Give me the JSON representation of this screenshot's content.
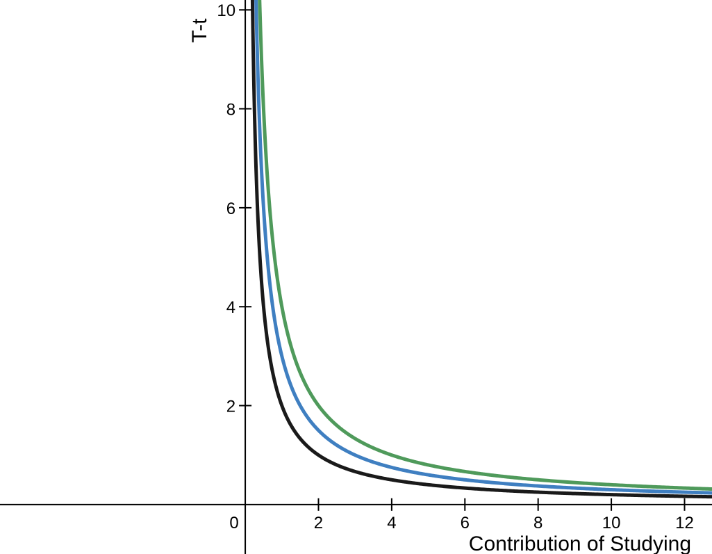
{
  "chart_data": {
    "type": "line",
    "xlabel": "Contribution of Studying",
    "ylabel": "T-t",
    "xlim": [
      -6.7,
      12.75
    ],
    "ylim": [
      -1.0,
      10.2
    ],
    "x_ticks": [
      0,
      2,
      4,
      6,
      8,
      10,
      12
    ],
    "y_ticks": [
      2,
      4,
      6,
      8,
      10
    ],
    "grid": false,
    "series": [
      {
        "color": "#1a1a1a",
        "k": 2.0,
        "x": [
          0.2,
          0.5,
          1,
          1.5,
          2,
          3,
          4,
          6,
          8,
          10,
          12.75
        ],
        "values": [
          10,
          4,
          2,
          1.33,
          1,
          0.67,
          0.5,
          0.33,
          0.25,
          0.2,
          0.16
        ]
      },
      {
        "color": "#3f7fc1",
        "k": 3.0,
        "x": [
          0.3,
          0.5,
          1,
          1.5,
          2,
          3,
          4,
          6,
          8,
          10,
          12.75
        ],
        "values": [
          10,
          6,
          3,
          2,
          1.5,
          1,
          0.75,
          0.5,
          0.38,
          0.3,
          0.24
        ]
      },
      {
        "color": "#4f9a5b",
        "k": 4.0,
        "x": [
          0.4,
          0.5,
          1,
          1.5,
          2,
          3,
          4,
          6,
          8,
          10,
          12.75
        ],
        "values": [
          10,
          8,
          4,
          2.67,
          2,
          1.33,
          1,
          0.67,
          0.5,
          0.4,
          0.31
        ]
      }
    ]
  }
}
